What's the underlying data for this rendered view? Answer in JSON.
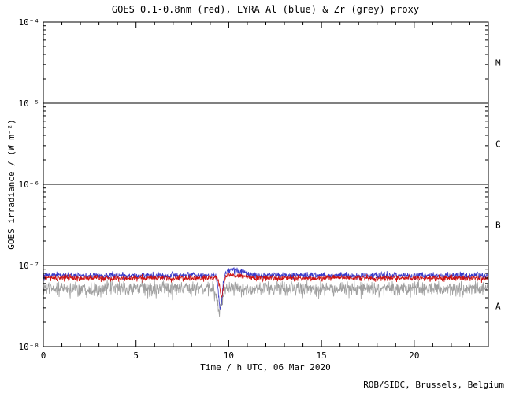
{
  "title": "GOES 0.1-0.8nm (red), LYRA Al (blue) & Zr (grey) proxy",
  "credit": "ROB/SIDC, Brussels, Belgium",
  "axes": {
    "x": {
      "label": "Time / h UTC, 06 Mar 2020",
      "min": 0,
      "max": 24,
      "major_ticks": [
        0,
        5,
        10,
        15,
        20
      ],
      "major_tick_labels": [
        "0",
        "5",
        "10",
        "15",
        "20"
      ],
      "minor_step": 1
    },
    "y": {
      "label": "GOES irradiance / (W m⁻²)",
      "log_min_exp": -8,
      "log_max_exp": -4,
      "tick_exponents": [
        -8,
        -7,
        -6,
        -5,
        -4
      ],
      "tick_labels": [
        "10⁻⁸",
        "10⁻⁷",
        "10⁻⁶",
        "10⁻⁵",
        "10⁻⁴"
      ]
    },
    "horizontal_line_exponents": [
      -7,
      -6,
      -5
    ],
    "flare_classes": [
      {
        "label": "M",
        "exp_mid": -4.5
      },
      {
        "label": "C",
        "exp_mid": -5.5
      },
      {
        "label": "B",
        "exp_mid": -6.5
      },
      {
        "label": "A",
        "exp_mid": -7.5
      }
    ]
  },
  "chart_data": {
    "type": "line",
    "x_range_hours": [
      0,
      24
    ],
    "y_range_wm2": [
      1e-08,
      0.0001
    ],
    "grid": false,
    "legend": "encoded in title by color",
    "series": [
      {
        "name": "LYRA Zr proxy",
        "color": "#a0a0a0",
        "baseline": 5.2e-08,
        "noise_frac": 0.18,
        "dip": {
          "t": 9.5,
          "width": 0.15,
          "min": 3e-08
        }
      },
      {
        "name": "LYRA Al proxy",
        "color": "#3a3ac8",
        "baseline": 7.5e-08,
        "noise_frac": 0.08,
        "dip": {
          "t": 9.55,
          "width": 0.12,
          "min": 2.8e-08
        },
        "bump": {
          "t": 10.3,
          "width": 0.6,
          "max": 8.6e-08
        }
      },
      {
        "name": "GOES 0.1-0.8nm",
        "color": "#cc1111",
        "baseline": 7e-08,
        "noise_frac": 0.07,
        "dip": {
          "t": 9.62,
          "width": 0.1,
          "min": 4e-08
        },
        "bump": {
          "t": 10.3,
          "width": 0.5,
          "max": 7.6e-08
        }
      }
    ]
  }
}
